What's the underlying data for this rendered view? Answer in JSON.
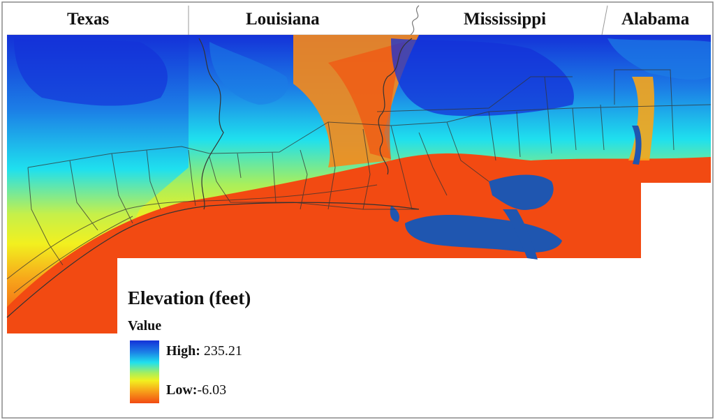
{
  "states": [
    {
      "name": "Texas"
    },
    {
      "name": "Louisiana"
    },
    {
      "name": "Mississippi"
    },
    {
      "name": "Alabama"
    }
  ],
  "legend": {
    "title": "Elevation (feet)",
    "subtitle": "Value",
    "high_label": "High:",
    "high_value": "235.21",
    "low_label": "Low:",
    "low_value": "-6.03",
    "colors": [
      "#1431d8",
      "#1fe0ee",
      "#f2f01f",
      "#f24a12"
    ]
  },
  "colors": {
    "high": "#1431d8",
    "mid_high": "#1fe0ee",
    "mid": "#f2f01f",
    "low": "#f24a12",
    "water": "#1f56b0",
    "boundary": "#333333"
  }
}
